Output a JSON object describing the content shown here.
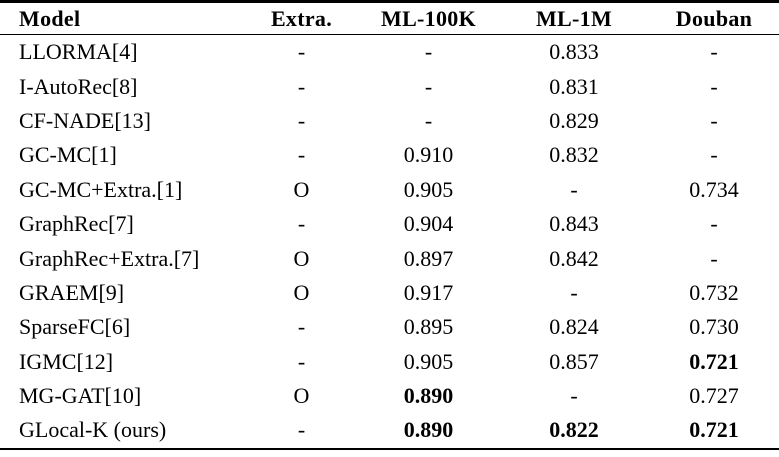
{
  "table": {
    "columns": [
      {
        "key": "model",
        "label": "Model",
        "align": "left"
      },
      {
        "key": "extra",
        "label": "Extra.",
        "align": "center"
      },
      {
        "key": "ml100k",
        "label": "ML-100K",
        "align": "center"
      },
      {
        "key": "ml1m",
        "label": "ML-1M",
        "align": "center"
      },
      {
        "key": "douban",
        "label": "Douban",
        "align": "center"
      }
    ],
    "rows": [
      {
        "model": "LLORMA[4]",
        "extra": "-",
        "ml100k": "-",
        "ml1m": "0.833",
        "douban": "-",
        "bold": []
      },
      {
        "model": "I-AutoRec[8]",
        "extra": "-",
        "ml100k": "-",
        "ml1m": "0.831",
        "douban": "-",
        "bold": []
      },
      {
        "model": "CF-NADE[13]",
        "extra": "-",
        "ml100k": "-",
        "ml1m": "0.829",
        "douban": "-",
        "bold": []
      },
      {
        "model": "GC-MC[1]",
        "extra": "-",
        "ml100k": "0.910",
        "ml1m": "0.832",
        "douban": "-",
        "bold": []
      },
      {
        "model": "GC-MC+Extra.[1]",
        "extra": "O",
        "ml100k": "0.905",
        "ml1m": "-",
        "douban": "0.734",
        "bold": []
      },
      {
        "model": "GraphRec[7]",
        "extra": "-",
        "ml100k": "0.904",
        "ml1m": "0.843",
        "douban": "-",
        "bold": []
      },
      {
        "model": "GraphRec+Extra.[7]",
        "extra": "O",
        "ml100k": "0.897",
        "ml1m": "0.842",
        "douban": "-",
        "bold": []
      },
      {
        "model": "GRAEM[9]",
        "extra": "O",
        "ml100k": "0.917",
        "ml1m": "-",
        "douban": "0.732",
        "bold": []
      },
      {
        "model": "SparseFC[6]",
        "extra": "-",
        "ml100k": "0.895",
        "ml1m": "0.824",
        "douban": "0.730",
        "bold": []
      },
      {
        "model": "IGMC[12]",
        "extra": "-",
        "ml100k": "0.905",
        "ml1m": "0.857",
        "douban": "0.721",
        "bold": [
          "douban"
        ]
      },
      {
        "model": "MG-GAT[10]",
        "extra": "O",
        "ml100k": "0.890",
        "ml1m": "-",
        "douban": "0.727",
        "bold": [
          "ml100k"
        ]
      },
      {
        "model": "GLocal-K (ours)",
        "extra": "-",
        "ml100k": "0.890",
        "ml1m": "0.822",
        "douban": "0.721",
        "bold": [
          "ml100k",
          "ml1m",
          "douban"
        ]
      }
    ]
  },
  "colors": {
    "text": "#000000",
    "background": "#ffffff",
    "rule": "#000000"
  }
}
